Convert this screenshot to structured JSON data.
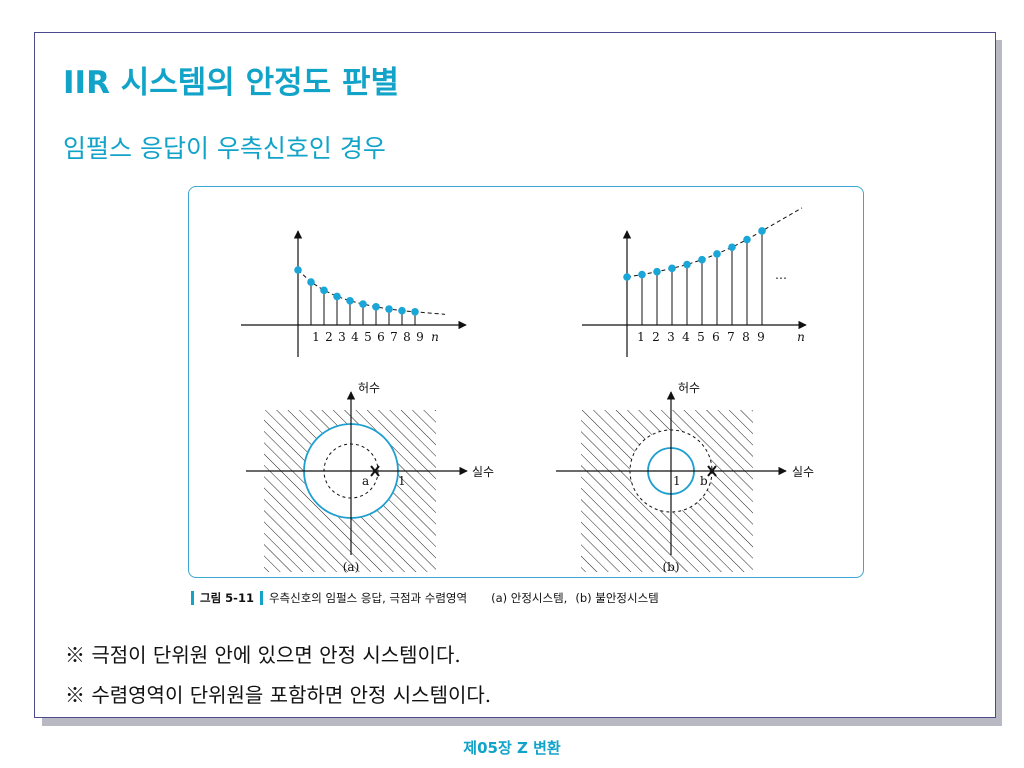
{
  "slide": {
    "title": "IIR 시스템의 안정도 판별",
    "subtitle": "임펄스 응답이 우측신호인 경우",
    "colors": {
      "accent": "#12a3c9",
      "dot": "#1ba6d8",
      "circle": "#1f9fd0",
      "border": "#4a4a8c"
    }
  },
  "figure": {
    "sequence_a": {
      "n_labels": [
        "1",
        "2",
        "3",
        "4",
        "5",
        "6",
        "7",
        "8",
        "9",
        "n"
      ],
      "values": [
        1.0,
        0.78,
        0.63,
        0.52,
        0.44,
        0.38,
        0.33,
        0.29,
        0.26,
        0.24
      ],
      "trend": "decaying"
    },
    "sequence_b": {
      "n_labels": [
        "1",
        "2",
        "3",
        "4",
        "5",
        "6",
        "7",
        "8",
        "9",
        "n"
      ],
      "ellipsis": "…",
      "values": [
        1.0,
        1.05,
        1.11,
        1.18,
        1.26,
        1.36,
        1.48,
        1.62,
        1.78,
        1.96
      ],
      "trend": "growing"
    },
    "zplane_a": {
      "imag_label": "허수",
      "real_label": "실수",
      "pole_label": "a",
      "unit_label": "1",
      "panel_label": "(a)",
      "unit_circle_radius": 1.0,
      "roc_radius": 0.6,
      "pole_position": 0.6
    },
    "zplane_b": {
      "imag_label": "허수",
      "real_label": "실수",
      "pole_label": "b",
      "unit_label": "1",
      "panel_label": "(b)",
      "unit_circle_radius": 1.0,
      "roc_radius": 1.65,
      "pole_position": 1.65
    }
  },
  "caption": {
    "label": "그림 5-11",
    "text": "우측신호의 임펄스 응답, 극점과 수렴영역",
    "part_a": "(a) 안정시스템,",
    "part_b": "(b) 불안정시스템"
  },
  "notes": [
    "※ 극점이 단위원 안에 있으면 안정 시스템이다.",
    "※ 수렴영역이 단위원을 포함하면 안정 시스템이다."
  ],
  "footer": "제05장 Z 변환"
}
